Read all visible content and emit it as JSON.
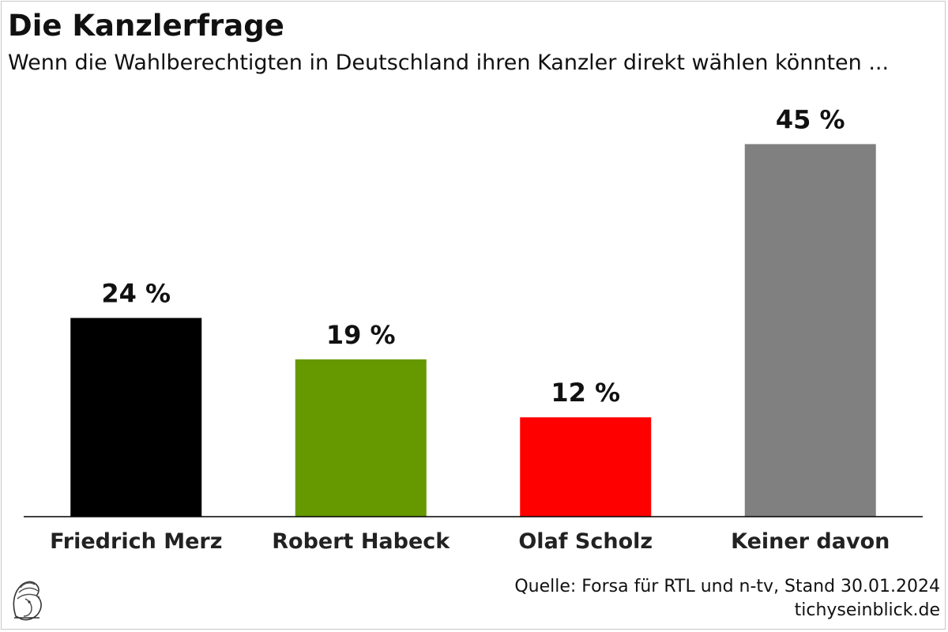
{
  "title": "Die Kanzlerfrage",
  "subtitle": "Wenn die Wahlberechtigten in Deutschland ihren Kanzler direkt wählen könnten ...",
  "source": "Quelle: Forsa für RTL und n-tv, Stand 30.01.2024",
  "website": "tichyseinblick.de",
  "chart_data": {
    "type": "bar",
    "title": "Die Kanzlerfrage",
    "subtitle": "Wenn die Wahlberechtigten in Deutschland ihren Kanzler direkt wählen könnten ...",
    "categories": [
      "Friedrich Merz",
      "Robert Habeck",
      "Olaf Scholz",
      "Keiner davon"
    ],
    "values": [
      24,
      19,
      12,
      45
    ],
    "value_labels": [
      "24 %",
      "19 %",
      "12 %",
      "45 %"
    ],
    "colors": [
      "#000000",
      "#669900",
      "#ff0000",
      "#808080"
    ],
    "xlabel": "",
    "ylabel": "",
    "ylim": [
      0,
      50
    ],
    "unit": "%",
    "grid": false,
    "legend": "none"
  }
}
